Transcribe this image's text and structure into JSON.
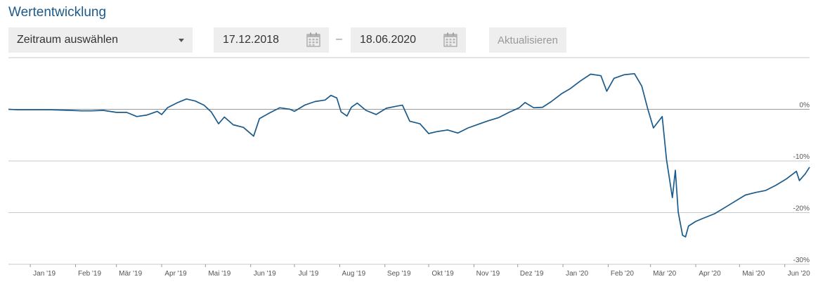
{
  "header": {
    "title": "Wertentwicklung"
  },
  "controls": {
    "period_select": "Zeitraum auswählen",
    "date_from": "17.12.2018",
    "date_separator": "–",
    "date_to": "18.06.2020",
    "refresh_label": "Aktualisieren",
    "calendar_icon": "calendar-icon",
    "select_icon": "chevron-down-icon"
  },
  "colors": {
    "title": "#1c5a8a",
    "line": "#1a5b8c",
    "grid": "#c8c8c8",
    "zero_line": "#999999",
    "control_bg": "#eeeeee"
  },
  "chart_data": {
    "type": "line",
    "title": "",
    "xlabel": "",
    "ylabel": "",
    "ylim": [
      -30,
      10
    ],
    "y_ticks": [
      {
        "value": 0,
        "label": "0%"
      },
      {
        "value": -10,
        "label": "-10%"
      },
      {
        "value": -20,
        "label": "-20%"
      },
      {
        "value": -30,
        "label": "-30%"
      }
    ],
    "x_ticks": [
      {
        "date": "2019-01-01",
        "label": "Jan '19"
      },
      {
        "date": "2019-02-01",
        "label": "Feb '19"
      },
      {
        "date": "2019-03-01",
        "label": "Mär '19"
      },
      {
        "date": "2019-04-01",
        "label": "Apr '19"
      },
      {
        "date": "2019-05-01",
        "label": "Mai '19"
      },
      {
        "date": "2019-06-01",
        "label": "Jun '19"
      },
      {
        "date": "2019-07-01",
        "label": "Jul '19"
      },
      {
        "date": "2019-08-01",
        "label": "Aug '19"
      },
      {
        "date": "2019-09-01",
        "label": "Sep '19"
      },
      {
        "date": "2019-10-01",
        "label": "Okt '19"
      },
      {
        "date": "2019-11-01",
        "label": "Nov '19"
      },
      {
        "date": "2019-12-01",
        "label": "Dez '19"
      },
      {
        "date": "2020-01-01",
        "label": "Jan '20"
      },
      {
        "date": "2020-02-01",
        "label": "Feb '20"
      },
      {
        "date": "2020-03-01",
        "label": "Mär '20"
      },
      {
        "date": "2020-04-01",
        "label": "Apr '20"
      },
      {
        "date": "2020-05-01",
        "label": "Mai '20"
      },
      {
        "date": "2020-06-01",
        "label": "Jun '20"
      }
    ],
    "grid": true,
    "legend": "none",
    "series": [
      {
        "points": [
          [
            "2018-12-17",
            0.0
          ],
          [
            "2018-12-24",
            -0.1
          ],
          [
            "2019-01-01",
            -0.1
          ],
          [
            "2019-01-15",
            -0.1
          ],
          [
            "2019-01-28",
            -0.2
          ],
          [
            "2019-02-05",
            -0.3
          ],
          [
            "2019-02-12",
            -0.3
          ],
          [
            "2019-02-20",
            -0.2
          ],
          [
            "2019-03-01",
            -0.6
          ],
          [
            "2019-03-08",
            -0.6
          ],
          [
            "2019-03-15",
            -1.4
          ],
          [
            "2019-03-22",
            -1.1
          ],
          [
            "2019-03-29",
            -0.4
          ],
          [
            "2019-04-01",
            -1.0
          ],
          [
            "2019-04-05",
            0.3
          ],
          [
            "2019-04-12",
            1.3
          ],
          [
            "2019-04-18",
            2.0
          ],
          [
            "2019-04-24",
            1.6
          ],
          [
            "2019-04-30",
            0.8
          ],
          [
            "2019-05-05",
            -0.5
          ],
          [
            "2019-05-10",
            -2.8
          ],
          [
            "2019-05-14",
            -1.5
          ],
          [
            "2019-05-20",
            -3.0
          ],
          [
            "2019-05-27",
            -3.5
          ],
          [
            "2019-06-03",
            -5.2
          ],
          [
            "2019-06-07",
            -1.8
          ],
          [
            "2019-06-14",
            -0.7
          ],
          [
            "2019-06-21",
            0.3
          ],
          [
            "2019-06-28",
            0.0
          ],
          [
            "2019-07-01",
            -0.4
          ],
          [
            "2019-07-08",
            0.8
          ],
          [
            "2019-07-15",
            1.5
          ],
          [
            "2019-07-22",
            1.8
          ],
          [
            "2019-07-26",
            2.7
          ],
          [
            "2019-07-30",
            2.2
          ],
          [
            "2019-08-02",
            -0.5
          ],
          [
            "2019-08-06",
            -1.3
          ],
          [
            "2019-08-09",
            0.4
          ],
          [
            "2019-08-13",
            1.2
          ],
          [
            "2019-08-19",
            -0.2
          ],
          [
            "2019-08-26",
            -1.0
          ],
          [
            "2019-09-02",
            0.2
          ],
          [
            "2019-09-09",
            0.6
          ],
          [
            "2019-09-13",
            0.8
          ],
          [
            "2019-09-18",
            -2.3
          ],
          [
            "2019-09-25",
            -2.8
          ],
          [
            "2019-10-01",
            -4.7
          ],
          [
            "2019-10-07",
            -4.3
          ],
          [
            "2019-10-14",
            -4.0
          ],
          [
            "2019-10-21",
            -4.6
          ],
          [
            "2019-10-28",
            -3.6
          ],
          [
            "2019-11-04",
            -2.9
          ],
          [
            "2019-11-11",
            -2.2
          ],
          [
            "2019-11-18",
            -1.6
          ],
          [
            "2019-11-25",
            -0.6
          ],
          [
            "2019-12-02",
            0.3
          ],
          [
            "2019-12-06",
            1.3
          ],
          [
            "2019-12-12",
            0.3
          ],
          [
            "2019-12-18",
            0.4
          ],
          [
            "2019-12-24",
            1.5
          ],
          [
            "2019-12-31",
            3.0
          ],
          [
            "2020-01-06",
            4.0
          ],
          [
            "2020-01-13",
            5.5
          ],
          [
            "2020-01-20",
            6.8
          ],
          [
            "2020-01-27",
            6.5
          ],
          [
            "2020-01-31",
            3.5
          ],
          [
            "2020-02-05",
            6.0
          ],
          [
            "2020-02-12",
            6.7
          ],
          [
            "2020-02-19",
            6.9
          ],
          [
            "2020-02-24",
            4.5
          ],
          [
            "2020-02-28",
            0.2
          ],
          [
            "2020-03-03",
            -3.6
          ],
          [
            "2020-03-09",
            -1.4
          ],
          [
            "2020-03-12",
            -9.8
          ],
          [
            "2020-03-16",
            -17.1
          ],
          [
            "2020-03-18",
            -11.8
          ],
          [
            "2020-03-20",
            -19.9
          ],
          [
            "2020-03-23",
            -24.4
          ],
          [
            "2020-03-25",
            -24.7
          ],
          [
            "2020-03-27",
            -22.6
          ],
          [
            "2020-04-01",
            -21.7
          ],
          [
            "2020-04-06",
            -21.1
          ],
          [
            "2020-04-14",
            -20.2
          ],
          [
            "2020-04-21",
            -19.0
          ],
          [
            "2020-04-28",
            -17.8
          ],
          [
            "2020-05-05",
            -16.6
          ],
          [
            "2020-05-12",
            -16.1
          ],
          [
            "2020-05-19",
            -15.7
          ],
          [
            "2020-05-26",
            -14.7
          ],
          [
            "2020-06-02",
            -13.5
          ],
          [
            "2020-06-09",
            -12.0
          ],
          [
            "2020-06-11",
            -13.8
          ],
          [
            "2020-06-15",
            -12.5
          ],
          [
            "2020-06-18",
            -11.2
          ]
        ]
      }
    ]
  }
}
